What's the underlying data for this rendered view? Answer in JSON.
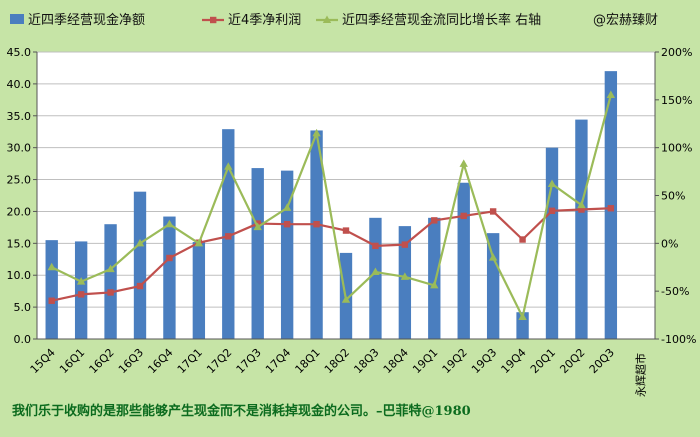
{
  "chart_data": {
    "type": "bar",
    "categories": [
      "15Q4",
      "16Q1",
      "16Q2",
      "16Q3",
      "16Q4",
      "17Q1",
      "17Q2",
      "17Q3",
      "17Q4",
      "18Q1",
      "18Q2",
      "18Q3",
      "18Q4",
      "19Q1",
      "19Q2",
      "19Q3",
      "19Q4",
      "20Q1",
      "20Q2",
      "20Q3"
    ],
    "company": "永辉超市",
    "credit": "@宏赫臻财",
    "footer": "我们乐于收购的是那些能够产生现金而不是消耗掉现金的公司。–巴菲特@1980",
    "y_left": {
      "min": 0,
      "max": 45,
      "step": 5,
      "ticks": [
        "0.0",
        "5.0",
        "10.0",
        "15.0",
        "20.0",
        "25.0",
        "30.0",
        "35.0",
        "40.0",
        "45.0"
      ]
    },
    "y_right": {
      "min": -100,
      "max": 200,
      "step": 50,
      "ticks": [
        "-100%",
        "-50%",
        "0%",
        "50%",
        "100%",
        "150%",
        "200%"
      ]
    },
    "grid": true,
    "legend_position": "top",
    "series": [
      {
        "name": "近四季经营现金净额",
        "type": "bar",
        "axis": "left",
        "color": "#4a7ebf",
        "values": [
          15.5,
          15.3,
          18.0,
          23.1,
          19.2,
          15.2,
          32.9,
          26.8,
          26.4,
          32.7,
          13.5,
          19.0,
          17.7,
          19.0,
          24.5,
          16.6,
          4.2,
          30.0,
          34.4,
          42.0
        ]
      },
      {
        "name": "近4季净利润",
        "type": "line",
        "axis": "left",
        "color": "#c0504d",
        "marker": "square",
        "values": [
          6.0,
          7.0,
          7.3,
          8.3,
          12.7,
          15.1,
          16.1,
          18.1,
          18.0,
          18.0,
          17.0,
          14.6,
          14.8,
          18.6,
          19.3,
          20.0,
          15.6,
          20.1,
          20.3,
          20.5
        ]
      },
      {
        "name": "近四季经营现金流同比增长率 右轴",
        "type": "line",
        "axis": "right",
        "color": "#9bbb59",
        "marker": "triangle",
        "values": [
          -25,
          -40,
          -27,
          0,
          20,
          0,
          80,
          17,
          37,
          115,
          -59,
          -30,
          -35,
          -44,
          83,
          -15,
          -77,
          62,
          40,
          155
        ]
      }
    ]
  }
}
